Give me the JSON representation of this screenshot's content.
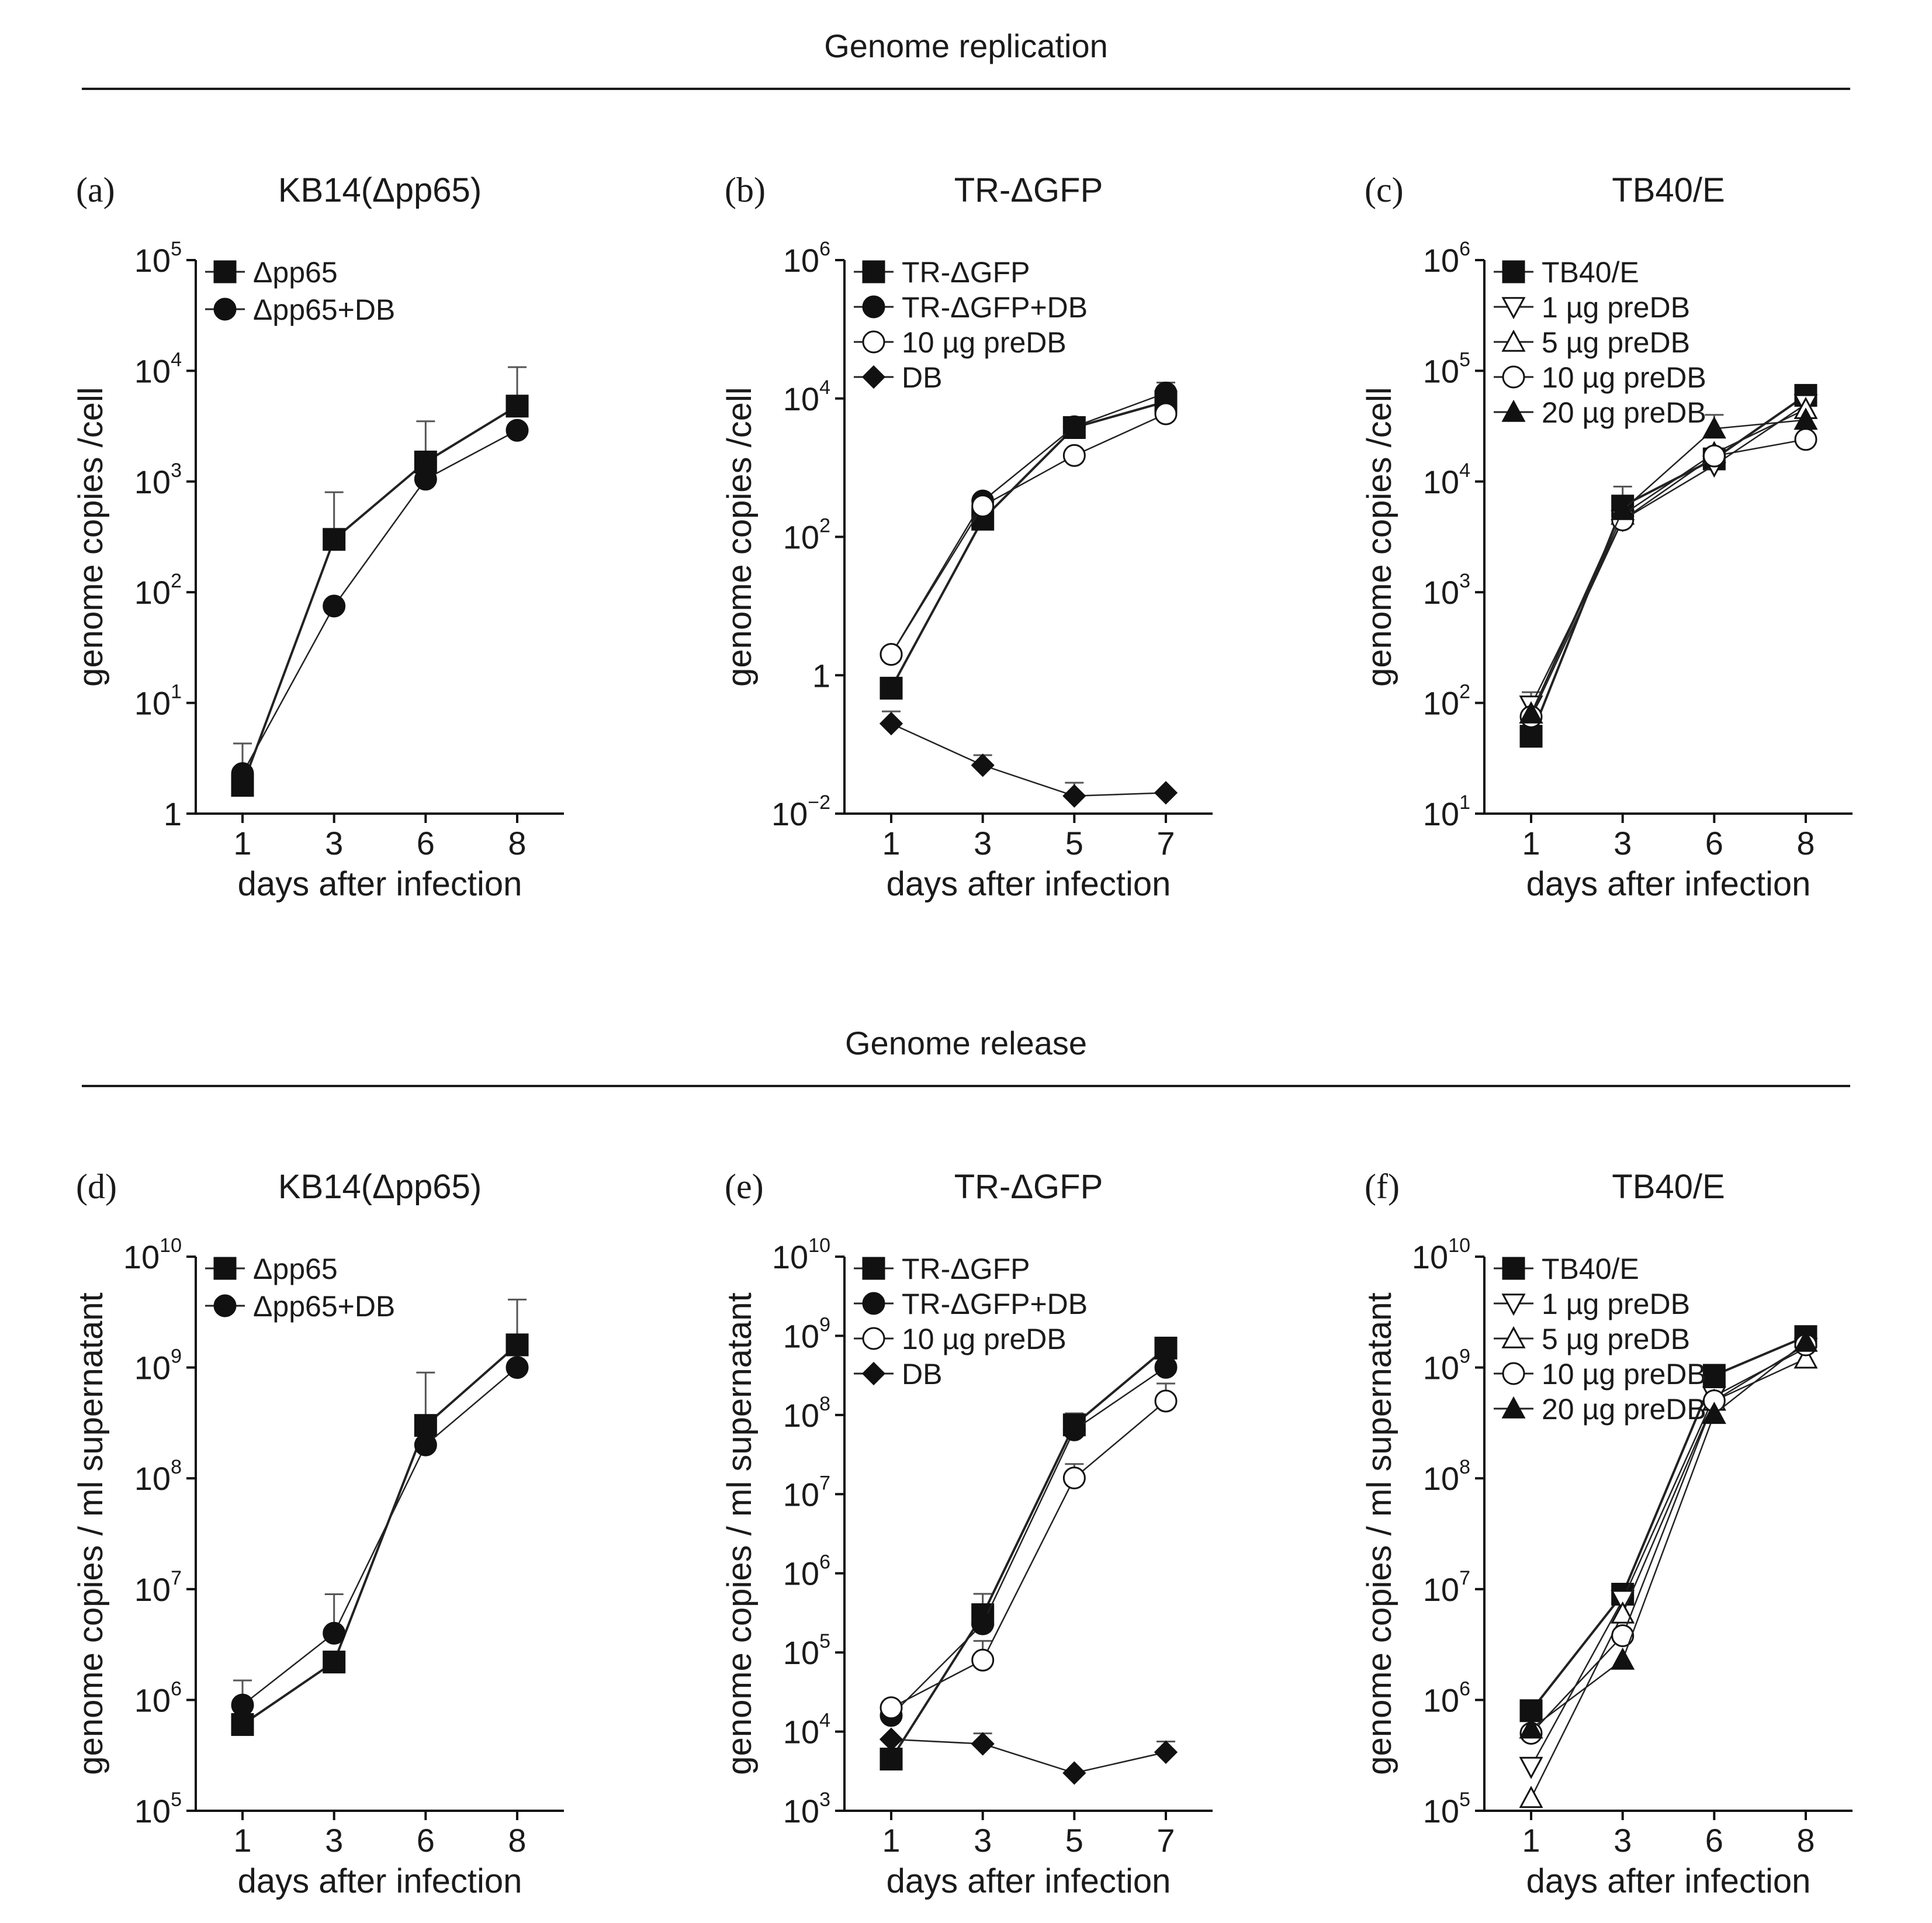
{
  "sections": [
    {
      "title": "Genome replication"
    },
    {
      "title": "Genome release"
    }
  ],
  "chart_data": [
    {
      "panel": "(a)",
      "title": "KB14(Δpp65)",
      "type": "line",
      "yscale": "log",
      "xlabel": "days after infection",
      "ylabel": "genome copies /cell",
      "categories": [
        "1",
        "3",
        "6",
        "8"
      ],
      "ylim_exp": [
        0,
        5
      ],
      "y_tick_labels": [
        {
          "exp": 0,
          "base": "1",
          "sup": ""
        },
        {
          "exp": 1,
          "base": "10",
          "sup": "1"
        },
        {
          "exp": 2,
          "base": "10",
          "sup": "2"
        },
        {
          "exp": 3,
          "base": "10",
          "sup": "3"
        },
        {
          "exp": 4,
          "base": "10",
          "sup": "4"
        },
        {
          "exp": 5,
          "base": "10",
          "sup": "5"
        }
      ],
      "series": [
        {
          "name": "Δpp65",
          "marker": "square-filled",
          "values": [
            1.8,
            300,
            1500,
            4800
          ],
          "err": [
            2.5,
            500,
            2000,
            6000
          ]
        },
        {
          "name": "Δpp65+DB",
          "marker": "circle-filled",
          "values": [
            2.3,
            75,
            1050,
            2900
          ],
          "err": [
            0,
            0,
            0,
            0
          ]
        }
      ]
    },
    {
      "panel": "(b)",
      "title": "TR-ΔGFP",
      "type": "line",
      "yscale": "log",
      "xlabel": "days after infection",
      "ylabel": "genome copies /cell",
      "categories": [
        "1",
        "3",
        "5",
        "7"
      ],
      "ylim_exp": [
        -2,
        6
      ],
      "y_tick_labels": [
        {
          "exp": -2,
          "base": "10",
          "sup": "−2"
        },
        {
          "exp": 0,
          "base": "1",
          "sup": ""
        },
        {
          "exp": 2,
          "base": "10",
          "sup": "2"
        },
        {
          "exp": 4,
          "base": "10",
          "sup": "4"
        },
        {
          "exp": 6,
          "base": "10",
          "sup": "6"
        }
      ],
      "series": [
        {
          "name": "TR-ΔGFP",
          "marker": "square-filled",
          "values": [
            0.65,
            180,
            3800,
            9000
          ],
          "err": [
            0.2,
            100,
            800,
            2500
          ]
        },
        {
          "name": "TR-ΔGFP+DB",
          "marker": "circle-filled",
          "values": [
            2.0,
            330,
            3900,
            12000
          ],
          "err": [
            0,
            0,
            0,
            5000
          ]
        },
        {
          "name": "10 µg preDB",
          "marker": "circle-open",
          "values": [
            2.0,
            280,
            1500,
            6000
          ],
          "err": [
            0,
            0,
            0,
            0
          ]
        },
        {
          "name": "DB",
          "marker": "diamond-filled",
          "values": [
            0.2,
            0.05,
            0.018,
            0.02
          ],
          "err": [
            0.1,
            0.02,
            0.01,
            0
          ]
        }
      ]
    },
    {
      "panel": "(c)",
      "title": "TB40/E",
      "type": "line",
      "yscale": "log",
      "xlabel": "days after infection",
      "ylabel": "genome copies /cell",
      "categories": [
        "1",
        "3",
        "6",
        "8"
      ],
      "ylim_exp": [
        1,
        6
      ],
      "y_tick_labels": [
        {
          "exp": 1,
          "base": "10",
          "sup": "1"
        },
        {
          "exp": 2,
          "base": "10",
          "sup": "2"
        },
        {
          "exp": 3,
          "base": "10",
          "sup": "3"
        },
        {
          "exp": 4,
          "base": "10",
          "sup": "4"
        },
        {
          "exp": 5,
          "base": "10",
          "sup": "5"
        },
        {
          "exp": 6,
          "base": "10",
          "sup": "6"
        }
      ],
      "series": [
        {
          "name": "TB40/E",
          "marker": "square-filled",
          "values": [
            50,
            6000,
            16000,
            60000
          ],
          "err": [
            0,
            3000,
            0,
            0
          ]
        },
        {
          "name": "1 µg preDB",
          "marker": "triangle-down-open",
          "values": [
            95,
            4500,
            14000,
            50000
          ],
          "err": [
            30,
            0,
            0,
            0
          ]
        },
        {
          "name": "5 µg preDB",
          "marker": "triangle-up-open",
          "values": [
            80,
            5000,
            18000,
            45000
          ],
          "err": [
            0,
            0,
            0,
            0
          ]
        },
        {
          "name": "10 µg preDB",
          "marker": "circle-open",
          "values": [
            75,
            4500,
            17000,
            24000
          ],
          "err": [
            0,
            0,
            0,
            0
          ]
        },
        {
          "name": "20 µg preDB",
          "marker": "triangle-up-filled",
          "values": [
            80,
            5500,
            30000,
            36000
          ],
          "err": [
            0,
            0,
            10000,
            0
          ]
        }
      ]
    },
    {
      "panel": "(d)",
      "title": "KB14(Δpp65)",
      "type": "line",
      "yscale": "log",
      "xlabel": "days after infection",
      "ylabel": "genome copies / ml supernatant",
      "categories": [
        "1",
        "3",
        "6",
        "8"
      ],
      "ylim_exp": [
        5,
        10
      ],
      "y_tick_labels": [
        {
          "exp": 5,
          "base": "10",
          "sup": "5"
        },
        {
          "exp": 6,
          "base": "10",
          "sup": "6"
        },
        {
          "exp": 7,
          "base": "10",
          "sup": "7"
        },
        {
          "exp": 8,
          "base": "10",
          "sup": "8"
        },
        {
          "exp": 9,
          "base": "10",
          "sup": "9"
        },
        {
          "exp": 10,
          "base": "10",
          "sup": "10"
        }
      ],
      "series": [
        {
          "name": "Δpp65",
          "marker": "square-filled",
          "values": [
            600000,
            2200000,
            300000000,
            1600000000
          ],
          "err": [
            0,
            0,
            600000000,
            2500000000
          ]
        },
        {
          "name": "Δpp65+DB",
          "marker": "circle-filled",
          "values": [
            900000,
            4000000,
            200000000,
            1000000000
          ],
          "err": [
            600000,
            5000000,
            0,
            0
          ]
        }
      ]
    },
    {
      "panel": "(e)",
      "title": "TR-ΔGFP",
      "type": "line",
      "yscale": "log",
      "xlabel": "days after infection",
      "ylabel": "genome copies / ml supernatant",
      "categories": [
        "1",
        "3",
        "5",
        "7"
      ],
      "ylim_exp": [
        3,
        10
      ],
      "y_tick_labels": [
        {
          "exp": 3,
          "base": "10",
          "sup": "3"
        },
        {
          "exp": 4,
          "base": "10",
          "sup": "4"
        },
        {
          "exp": 5,
          "base": "10",
          "sup": "5"
        },
        {
          "exp": 6,
          "base": "10",
          "sup": "6"
        },
        {
          "exp": 7,
          "base": "10",
          "sup": "7"
        },
        {
          "exp": 8,
          "base": "10",
          "sup": "8"
        },
        {
          "exp": 9,
          "base": "10",
          "sup": "9"
        },
        {
          "exp": 10,
          "base": "10",
          "sup": "10"
        }
      ],
      "series": [
        {
          "name": "TR-ΔGFP",
          "marker": "square-filled",
          "values": [
            4500,
            300000,
            75000000,
            700000000
          ],
          "err": [
            0,
            250000,
            30000000,
            0
          ]
        },
        {
          "name": "TR-ΔGFP+DB",
          "marker": "circle-filled",
          "values": [
            16000,
            230000,
            65000000,
            400000000
          ],
          "err": [
            0,
            0,
            0,
            0
          ]
        },
        {
          "name": "10 µg preDB",
          "marker": "circle-open",
          "values": [
            20000,
            80000,
            16000000,
            150000000
          ],
          "err": [
            0,
            60000,
            8000000,
            100000000
          ]
        },
        {
          "name": "DB",
          "marker": "diamond-filled",
          "values": [
            8000,
            7000,
            3000,
            5500
          ],
          "err": [
            0,
            2500,
            0,
            2000
          ]
        }
      ]
    },
    {
      "panel": "(f)",
      "title": "TB40/E",
      "type": "line",
      "yscale": "log",
      "xlabel": "days after infection",
      "ylabel": "genome copies / ml supernatant",
      "categories": [
        "1",
        "3",
        "6",
        "8"
      ],
      "ylim_exp": [
        5,
        10
      ],
      "y_tick_labels": [
        {
          "exp": 5,
          "base": "10",
          "sup": "5"
        },
        {
          "exp": 6,
          "base": "10",
          "sup": "6"
        },
        {
          "exp": 7,
          "base": "10",
          "sup": "7"
        },
        {
          "exp": 8,
          "base": "10",
          "sup": "8"
        },
        {
          "exp": 9,
          "base": "10",
          "sup": "9"
        },
        {
          "exp": 10,
          "base": "10",
          "sup": "10"
        }
      ],
      "series": [
        {
          "name": "TB40/E",
          "marker": "square-filled",
          "values": [
            800000,
            9000000,
            850000000,
            1900000000
          ],
          "err": [
            0,
            0,
            0,
            0
          ]
        },
        {
          "name": "1 µg preDB",
          "marker": "triangle-down-open",
          "values": [
            250000,
            8000000,
            550000000,
            1500000000
          ],
          "err": [
            0,
            0,
            0,
            0
          ]
        },
        {
          "name": "5 µg preDB",
          "marker": "triangle-up-open",
          "values": [
            130000,
            6000000,
            500000000,
            1200000000
          ],
          "err": [
            0,
            0,
            0,
            0
          ]
        },
        {
          "name": "10 µg preDB",
          "marker": "circle-open",
          "values": [
            500000,
            3800000,
            500000000,
            1600000000
          ],
          "err": [
            0,
            0,
            0,
            0
          ]
        },
        {
          "name": "20 µg preDB",
          "marker": "triangle-up-filled",
          "values": [
            550000,
            2300000,
            380000000,
            1700000000
          ],
          "err": [
            0,
            0,
            0,
            0
          ]
        }
      ]
    }
  ]
}
